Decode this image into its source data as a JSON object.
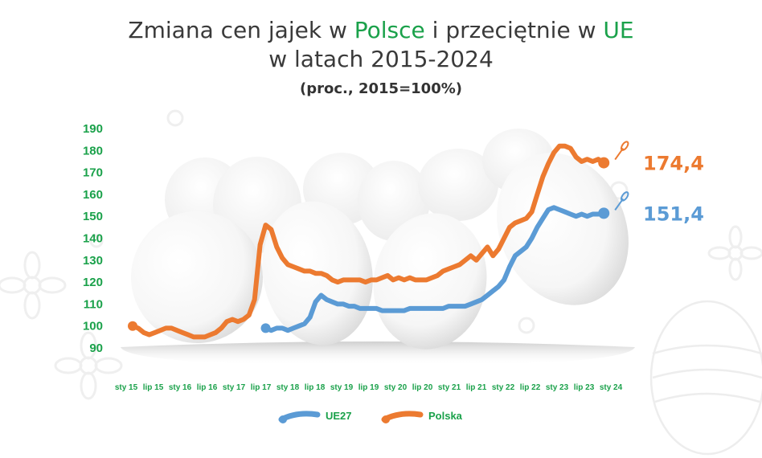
{
  "title": {
    "part1": "Zmiana cen jajek w ",
    "highlight1": "Polsce",
    "part2": " i przeciętnie w ",
    "highlight2": "UE",
    "line2": "w latach 2015-2024",
    "subtitle": "(proc., 2015=100%)"
  },
  "colors": {
    "polska": "#ec7a30",
    "ue": "#5b9bd5",
    "accent": "#1aa14a"
  },
  "chart_data": {
    "type": "line",
    "ylim": [
      90,
      190
    ],
    "yticks": [
      90,
      100,
      110,
      120,
      130,
      140,
      150,
      160,
      170,
      180,
      190
    ],
    "xtick_labels": [
      "sty 15",
      "lip 15",
      "sty 16",
      "lip 16",
      "sty 17",
      "lip 17",
      "sty 18",
      "lip 18",
      "sty 19",
      "lip 19",
      "sty 20",
      "lip 20",
      "sty 21",
      "lip 21",
      "sty 22",
      "lip 22",
      "sty 23",
      "lip 23",
      "sty 24"
    ],
    "series": [
      {
        "name": "Polska",
        "end_label": "174,4",
        "values": [
          [
            0,
            100
          ],
          [
            1,
            99
          ],
          [
            2,
            97
          ],
          [
            3,
            96
          ],
          [
            4,
            97
          ],
          [
            5,
            98
          ],
          [
            6,
            99
          ],
          [
            7,
            99
          ],
          [
            8,
            98
          ],
          [
            9,
            97
          ],
          [
            10,
            96
          ],
          [
            11,
            95
          ],
          [
            12,
            95
          ],
          [
            13,
            95
          ],
          [
            14,
            96
          ],
          [
            15,
            97
          ],
          [
            16,
            99
          ],
          [
            17,
            102
          ],
          [
            18,
            103
          ],
          [
            19,
            102
          ],
          [
            20,
            103
          ],
          [
            21,
            105
          ],
          [
            22,
            112
          ],
          [
            23,
            137
          ],
          [
            24,
            146
          ],
          [
            25,
            144
          ],
          [
            26,
            136
          ],
          [
            27,
            131
          ],
          [
            28,
            128
          ],
          [
            29,
            127
          ],
          [
            30,
            126
          ],
          [
            31,
            125
          ],
          [
            32,
            125
          ],
          [
            33,
            124
          ],
          [
            34,
            124
          ],
          [
            35,
            123
          ],
          [
            36,
            121
          ],
          [
            37,
            120
          ],
          [
            38,
            121
          ],
          [
            39,
            121
          ],
          [
            40,
            121
          ],
          [
            41,
            121
          ],
          [
            42,
            120
          ],
          [
            43,
            121
          ],
          [
            44,
            121
          ],
          [
            45,
            122
          ],
          [
            46,
            123
          ],
          [
            47,
            121
          ],
          [
            48,
            122
          ],
          [
            49,
            121
          ],
          [
            50,
            122
          ],
          [
            51,
            121
          ],
          [
            52,
            121
          ],
          [
            53,
            121
          ],
          [
            54,
            122
          ],
          [
            55,
            123
          ],
          [
            56,
            125
          ],
          [
            57,
            126
          ],
          [
            58,
            127
          ],
          [
            59,
            128
          ],
          [
            60,
            130
          ],
          [
            61,
            132
          ],
          [
            62,
            130
          ],
          [
            63,
            133
          ],
          [
            64,
            136
          ],
          [
            65,
            132
          ],
          [
            66,
            135
          ],
          [
            67,
            140
          ],
          [
            68,
            145
          ],
          [
            69,
            147
          ],
          [
            70,
            148
          ],
          [
            71,
            149
          ],
          [
            72,
            152
          ],
          [
            73,
            160
          ],
          [
            74,
            168
          ],
          [
            75,
            174
          ],
          [
            76,
            179
          ],
          [
            77,
            182
          ],
          [
            78,
            182
          ],
          [
            79,
            181
          ],
          [
            80,
            177
          ],
          [
            81,
            175
          ],
          [
            82,
            176
          ],
          [
            83,
            175
          ],
          [
            84,
            176
          ],
          [
            85,
            174.4
          ]
        ]
      },
      {
        "name": "UE27",
        "end_label": "151,4",
        "values": [
          [
            24,
            99
          ],
          [
            25,
            98
          ],
          [
            26,
            99
          ],
          [
            27,
            99
          ],
          [
            28,
            98
          ],
          [
            29,
            99
          ],
          [
            30,
            100
          ],
          [
            31,
            101
          ],
          [
            32,
            104
          ],
          [
            33,
            111
          ],
          [
            34,
            114
          ],
          [
            35,
            112
          ],
          [
            36,
            111
          ],
          [
            37,
            110
          ],
          [
            38,
            110
          ],
          [
            39,
            109
          ],
          [
            40,
            109
          ],
          [
            41,
            108
          ],
          [
            42,
            108
          ],
          [
            43,
            108
          ],
          [
            44,
            108
          ],
          [
            45,
            107
          ],
          [
            46,
            107
          ],
          [
            47,
            107
          ],
          [
            48,
            107
          ],
          [
            49,
            107
          ],
          [
            50,
            108
          ],
          [
            51,
            108
          ],
          [
            52,
            108
          ],
          [
            53,
            108
          ],
          [
            54,
            108
          ],
          [
            55,
            108
          ],
          [
            56,
            108
          ],
          [
            57,
            109
          ],
          [
            58,
            109
          ],
          [
            59,
            109
          ],
          [
            60,
            109
          ],
          [
            61,
            110
          ],
          [
            62,
            111
          ],
          [
            63,
            112
          ],
          [
            64,
            114
          ],
          [
            65,
            116
          ],
          [
            66,
            118
          ],
          [
            67,
            121
          ],
          [
            68,
            127
          ],
          [
            69,
            132
          ],
          [
            70,
            134
          ],
          [
            71,
            136
          ],
          [
            72,
            140
          ],
          [
            73,
            145
          ],
          [
            74,
            149
          ],
          [
            75,
            153
          ],
          [
            76,
            154
          ],
          [
            77,
            153
          ],
          [
            78,
            152
          ],
          [
            79,
            151
          ],
          [
            80,
            150
          ],
          [
            81,
            151
          ],
          [
            82,
            150
          ],
          [
            83,
            151
          ],
          [
            84,
            151
          ],
          [
            85,
            151.4
          ]
        ]
      }
    ],
    "x_max": 87,
    "legend": [
      {
        "label": "UE27",
        "key": "ue"
      },
      {
        "label": "Polska",
        "key": "polska"
      }
    ],
    "legend_position": "bottom",
    "grid": false
  }
}
